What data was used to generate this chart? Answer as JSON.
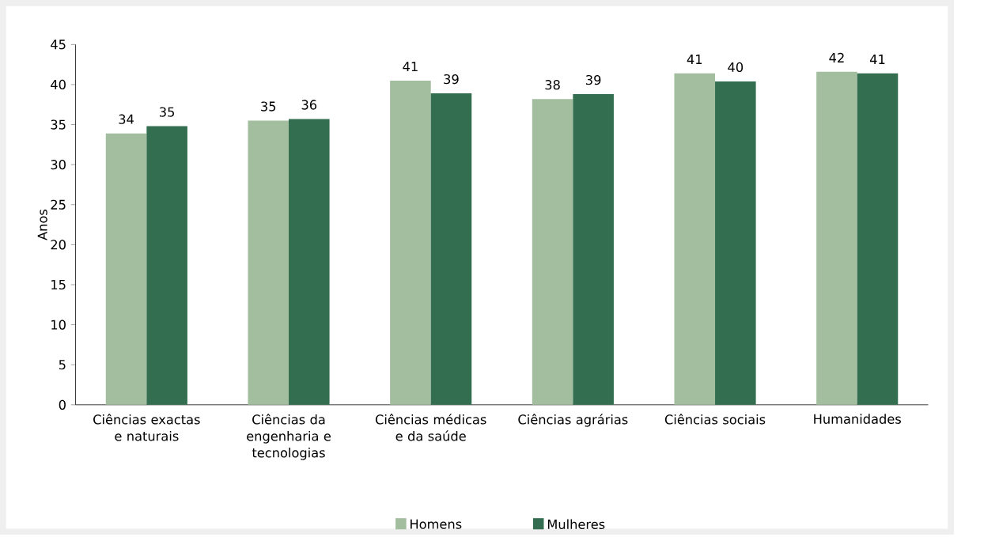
{
  "chart_data": {
    "type": "bar",
    "ylabel": "Anos",
    "categories": [
      "Ciências exactas e naturais",
      "Ciências da engenharia e tecnologias",
      "Ciências médicas e da saúde",
      "Ciências agrárias",
      "Ciências sociais",
      "Humanidades"
    ],
    "series": [
      {
        "name": "Homens",
        "color": "#a3bd9f",
        "values": [
          33.9,
          35.5,
          40.5,
          38.2,
          41.4,
          41.6
        ],
        "value_labels": [
          "34",
          "35",
          "41",
          "38",
          "41",
          "42"
        ]
      },
      {
        "name": "Mulheres",
        "color": "#326e4f",
        "values": [
          34.8,
          35.7,
          38.9,
          38.8,
          40.4,
          41.4
        ],
        "value_labels": [
          "35",
          "36",
          "39",
          "39",
          "40",
          "41"
        ]
      }
    ],
    "ylim": [
      0,
      45
    ],
    "yticks": [
      0,
      5,
      10,
      15,
      20,
      25,
      30,
      35,
      40,
      45
    ],
    "legend": "bottom"
  }
}
